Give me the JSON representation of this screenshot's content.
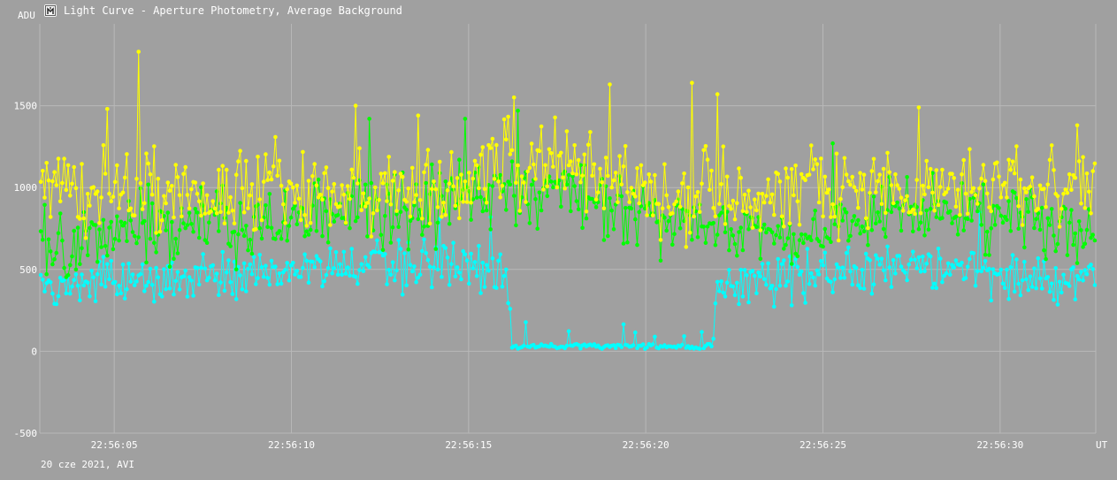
{
  "window": {
    "title": "Light Curve - Aperture Photometry, Average Background",
    "icon": "light-curve-icon"
  },
  "footer": {
    "date_label": "20 cze 2021, AVI"
  },
  "colors": {
    "background": "#a0a0a0",
    "grid": "#b8b8b8",
    "text": "#ffffff",
    "yellow": "#ffff00",
    "green": "#00ff00",
    "cyan": "#00ffff"
  },
  "chart_data": {
    "type": "line",
    "ylabel": "ADU",
    "xlabel": "UT",
    "ylim": [
      -500,
      2000
    ],
    "yticks": [
      -500,
      0,
      500,
      1000,
      1500
    ],
    "xlim": [
      "22:56:02.9",
      "22:56:32.7"
    ],
    "xticks": [
      "22:56:05",
      "22:56:10",
      "22:56:15",
      "22:56:20",
      "22:56:25",
      "22:56:30"
    ],
    "grid": true,
    "frames": 540,
    "series": [
      {
        "color": "yellow",
        "anchors": {
          "x": [
            "22:56:03.0",
            "22:56:03.5",
            "22:56:04.0",
            "22:56:05.0",
            "22:56:06.0",
            "22:56:07.0",
            "22:56:08.0",
            "22:56:09.0",
            "22:56:10.0",
            "22:56:11.0",
            "22:56:12.0",
            "22:56:13.0",
            "22:56:14.0",
            "22:56:15.0",
            "22:56:16.0",
            "22:56:17.0",
            "22:56:18.0",
            "22:56:19.0",
            "22:56:20.0",
            "22:56:21.0",
            "22:56:22.0",
            "22:56:23.0",
            "22:56:24.0",
            "22:56:25.0",
            "22:56:26.0",
            "22:56:27.0",
            "22:56:28.0",
            "22:56:29.0",
            "22:56:30.0",
            "22:56:31.0",
            "22:56:32.7"
          ],
          "y": [
            900,
            1050,
            950,
            1000,
            950,
            1000,
            950,
            1000,
            950,
            1000,
            950,
            1000,
            950,
            1050,
            1150,
            1100,
            1150,
            1050,
            1000,
            950,
            1000,
            950,
            1000,
            1000,
            950,
            1000,
            950,
            1000,
            1000,
            1000,
            950
          ]
        },
        "peaks": [
          {
            "x": "22:56:05.7",
            "y": 1830
          },
          {
            "x": "22:56:04.8",
            "y": 1480
          },
          {
            "x": "22:56:11.8",
            "y": 1500
          },
          {
            "x": "22:56:13.6",
            "y": 1440
          },
          {
            "x": "22:56:16.3",
            "y": 1550
          },
          {
            "x": "22:56:19.0",
            "y": 1630
          },
          {
            "x": "22:56:21.3",
            "y": 1640
          },
          {
            "x": "22:56:22.0",
            "y": 1570
          },
          {
            "x": "22:56:27.7",
            "y": 1490
          },
          {
            "x": "22:56:32.2",
            "y": 1380
          }
        ]
      },
      {
        "color": "green",
        "anchors": {
          "x": [
            "22:56:03.0",
            "22:56:05.0",
            "22:56:07.0",
            "22:56:09.0",
            "22:56:11.0",
            "22:56:13.0",
            "22:56:15.0",
            "22:56:16.0",
            "22:56:17.0",
            "22:56:18.0",
            "22:56:19.0",
            "22:56:20.0",
            "22:56:21.0",
            "22:56:22.0",
            "22:56:23.0",
            "22:56:25.0",
            "22:56:27.0",
            "22:56:29.0",
            "22:56:31.0",
            "22:56:32.7"
          ],
          "y": [
            650,
            720,
            750,
            800,
            830,
            880,
            950,
            1000,
            950,
            950,
            900,
            850,
            800,
            750,
            720,
            750,
            900,
            850,
            820,
            700
          ]
        },
        "peaks": [
          {
            "x": "22:56:12.2",
            "y": 1420
          },
          {
            "x": "22:56:14.9",
            "y": 1420
          },
          {
            "x": "22:56:16.4",
            "y": 1470
          },
          {
            "x": "22:56:25.3",
            "y": 1270
          }
        ]
      },
      {
        "color": "cyan",
        "anchors": {
          "x": [
            "22:56:03.0",
            "22:56:05.0",
            "22:56:07.0",
            "22:56:09.0",
            "22:56:11.0",
            "22:56:13.0",
            "22:56:15.0",
            "22:56:16.1",
            "22:56:16.2",
            "22:56:21.9",
            "22:56:22.0",
            "22:56:23.0",
            "22:56:25.0",
            "22:56:27.0",
            "22:56:29.0",
            "22:56:31.0",
            "22:56:32.7"
          ],
          "y": [
            380,
            420,
            450,
            480,
            500,
            520,
            530,
            520,
            30,
            30,
            380,
            420,
            480,
            500,
            480,
            450,
            470
          ]
        },
        "peaks": [
          {
            "x": "22:56:15.6",
            "y": 820
          },
          {
            "x": "22:56:14.2",
            "y": 810
          },
          {
            "x": "22:56:29.4",
            "y": 850
          }
        ]
      }
    ]
  }
}
